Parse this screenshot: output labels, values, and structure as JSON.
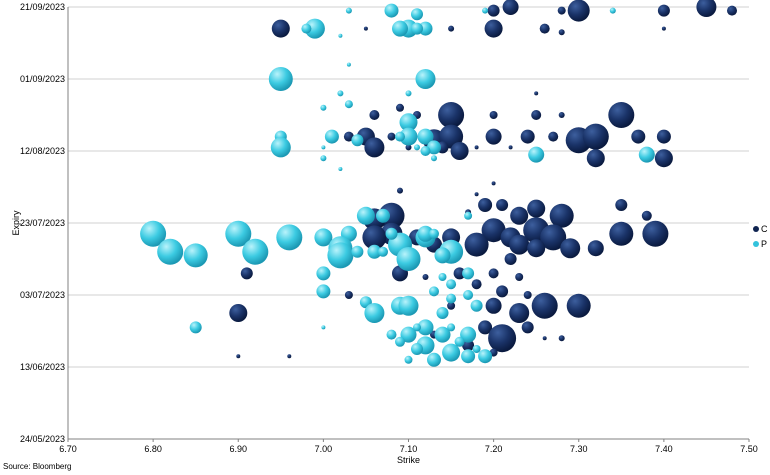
{
  "colors": {
    "C": "#0f2350",
    "P": "#33c2dc",
    "gridline": "#d0d0d0",
    "axis": "#808080"
  },
  "source": "Source: Bloomberg",
  "chart_data": {
    "type": "scatter",
    "subtype": "bubble",
    "title": "",
    "xlabel": "Strike",
    "ylabel": "Expiry",
    "xlim": [
      6.7,
      7.5
    ],
    "ylim": [
      "24/05/2023",
      "21/09/2023"
    ],
    "x_ticks": [
      "6.70",
      "6.80",
      "6.90",
      "7.00",
      "7.10",
      "7.20",
      "7.30",
      "7.40",
      "7.50"
    ],
    "y_ticks": [
      "21/09/2023",
      "01/09/2023",
      "12/08/2023",
      "23/07/2023",
      "03/07/2023",
      "13/06/2023",
      "24/05/2023"
    ],
    "grid": "horizontal",
    "legend_position": "right",
    "series": [
      {
        "name": "C",
        "points": [
          {
            "x": 7.22,
            "y": "2023-09-21",
            "r": 8
          },
          {
            "x": 7.3,
            "y": "2023-09-20",
            "r": 11
          },
          {
            "x": 7.45,
            "y": "2023-09-21",
            "r": 10
          },
          {
            "x": 7.4,
            "y": "2023-09-20",
            "r": 6
          },
          {
            "x": 7.2,
            "y": "2023-09-20",
            "r": 6
          },
          {
            "x": 7.28,
            "y": "2023-09-20",
            "r": 4
          },
          {
            "x": 7.48,
            "y": "2023-09-20",
            "r": 5
          },
          {
            "x": 6.95,
            "y": "2023-09-15",
            "r": 9
          },
          {
            "x": 7.2,
            "y": "2023-09-15",
            "r": 9
          },
          {
            "x": 7.26,
            "y": "2023-09-15",
            "r": 5
          },
          {
            "x": 7.15,
            "y": "2023-09-15",
            "r": 3
          },
          {
            "x": 7.05,
            "y": "2023-09-15",
            "r": 2
          },
          {
            "x": 7.28,
            "y": "2023-09-14",
            "r": 3
          },
          {
            "x": 7.4,
            "y": "2023-09-15",
            "r": 2
          },
          {
            "x": 7.15,
            "y": "2023-08-22",
            "r": 13
          },
          {
            "x": 7.35,
            "y": "2023-08-22",
            "r": 13
          },
          {
            "x": 7.2,
            "y": "2023-08-22",
            "r": 4
          },
          {
            "x": 7.06,
            "y": "2023-08-22",
            "r": 5
          },
          {
            "x": 7.25,
            "y": "2023-08-22",
            "r": 5
          },
          {
            "x": 7.11,
            "y": "2023-08-22",
            "r": 4
          },
          {
            "x": 7.09,
            "y": "2023-08-24",
            "r": 4
          },
          {
            "x": 7.28,
            "y": "2023-08-22",
            "r": 3
          },
          {
            "x": 7.25,
            "y": "2023-08-28",
            "r": 2
          },
          {
            "x": 7.03,
            "y": "2023-08-16",
            "r": 5
          },
          {
            "x": 7.05,
            "y": "2023-08-16",
            "r": 9
          },
          {
            "x": 7.13,
            "y": "2023-08-15",
            "r": 11
          },
          {
            "x": 7.15,
            "y": "2023-08-16",
            "r": 12
          },
          {
            "x": 7.2,
            "y": "2023-08-16",
            "r": 8
          },
          {
            "x": 7.24,
            "y": "2023-08-16",
            "r": 7
          },
          {
            "x": 7.27,
            "y": "2023-08-16",
            "r": 5
          },
          {
            "x": 7.3,
            "y": "2023-08-15",
            "r": 13
          },
          {
            "x": 7.32,
            "y": "2023-08-16",
            "r": 13
          },
          {
            "x": 7.4,
            "y": "2023-08-16",
            "r": 7
          },
          {
            "x": 7.37,
            "y": "2023-08-16",
            "r": 7
          },
          {
            "x": 7.08,
            "y": "2023-08-16",
            "r": 4
          },
          {
            "x": 7.1,
            "y": "2023-08-15",
            "r": 3
          },
          {
            "x": 7.14,
            "y": "2023-08-13",
            "r": 6
          },
          {
            "x": 7.06,
            "y": "2023-08-13",
            "r": 10
          },
          {
            "x": 7.1,
            "y": "2023-08-13",
            "r": 3
          },
          {
            "x": 7.16,
            "y": "2023-08-12",
            "r": 9
          },
          {
            "x": 7.32,
            "y": "2023-08-10",
            "r": 9
          },
          {
            "x": 7.4,
            "y": "2023-08-10",
            "r": 9
          },
          {
            "x": 7.18,
            "y": "2023-08-13",
            "r": 2
          },
          {
            "x": 7.22,
            "y": "2023-08-13",
            "r": 2
          },
          {
            "x": 7.09,
            "y": "2023-08-01",
            "r": 3
          },
          {
            "x": 7.18,
            "y": "2023-07-31",
            "r": 2
          },
          {
            "x": 7.2,
            "y": "2023-08-03",
            "r": 2
          },
          {
            "x": 7.19,
            "y": "2023-07-28",
            "r": 7
          },
          {
            "x": 7.21,
            "y": "2023-07-28",
            "r": 6
          },
          {
            "x": 7.25,
            "y": "2023-07-27",
            "r": 9
          },
          {
            "x": 7.28,
            "y": "2023-07-25",
            "r": 12
          },
          {
            "x": 7.35,
            "y": "2023-07-28",
            "r": 6
          },
          {
            "x": 7.38,
            "y": "2023-07-25",
            "r": 5
          },
          {
            "x": 7.08,
            "y": "2023-07-25",
            "r": 13
          },
          {
            "x": 7.06,
            "y": "2023-07-24",
            "r": 11
          },
          {
            "x": 7.17,
            "y": "2023-07-26",
            "r": 3
          },
          {
            "x": 7.23,
            "y": "2023-07-25",
            "r": 9
          },
          {
            "x": 7.2,
            "y": "2023-07-21",
            "r": 12
          },
          {
            "x": 7.25,
            "y": "2023-07-21",
            "r": 13
          },
          {
            "x": 7.27,
            "y": "2023-07-19",
            "r": 13
          },
          {
            "x": 7.35,
            "y": "2023-07-20",
            "r": 12
          },
          {
            "x": 7.39,
            "y": "2023-07-20",
            "r": 13
          },
          {
            "x": 7.22,
            "y": "2023-07-19",
            "r": 10
          },
          {
            "x": 7.08,
            "y": "2023-07-20",
            "r": 11
          },
          {
            "x": 7.06,
            "y": "2023-07-19",
            "r": 12
          },
          {
            "x": 7.15,
            "y": "2023-07-19",
            "r": 9
          },
          {
            "x": 7.18,
            "y": "2023-07-17",
            "r": 12
          },
          {
            "x": 7.23,
            "y": "2023-07-17",
            "r": 10
          },
          {
            "x": 7.29,
            "y": "2023-07-16",
            "r": 10
          },
          {
            "x": 7.25,
            "y": "2023-07-16",
            "r": 9
          },
          {
            "x": 7.32,
            "y": "2023-07-16",
            "r": 8
          },
          {
            "x": 7.13,
            "y": "2023-07-17",
            "r": 8
          },
          {
            "x": 7.11,
            "y": "2023-07-19",
            "r": 8
          },
          {
            "x": 7.22,
            "y": "2023-07-13",
            "r": 6
          },
          {
            "x": 7.0,
            "y": "2023-07-09",
            "r": 6
          },
          {
            "x": 7.2,
            "y": "2023-07-09",
            "r": 5
          },
          {
            "x": 7.23,
            "y": "2023-07-08",
            "r": 4
          },
          {
            "x": 6.91,
            "y": "2023-07-09",
            "r": 6
          },
          {
            "x": 7.09,
            "y": "2023-07-09",
            "r": 8
          },
          {
            "x": 7.16,
            "y": "2023-07-09",
            "r": 6
          },
          {
            "x": 7.12,
            "y": "2023-07-08",
            "r": 3
          },
          {
            "x": 7.18,
            "y": "2023-07-06",
            "r": 5
          },
          {
            "x": 7.21,
            "y": "2023-07-04",
            "r": 6
          },
          {
            "x": 7.24,
            "y": "2023-07-03",
            "r": 4
          },
          {
            "x": 7.03,
            "y": "2023-07-03",
            "r": 4
          },
          {
            "x": 7.2,
            "y": "2023-06-30",
            "r": 8
          },
          {
            "x": 7.23,
            "y": "2023-06-28",
            "r": 10
          },
          {
            "x": 7.26,
            "y": "2023-06-30",
            "r": 13
          },
          {
            "x": 7.3,
            "y": "2023-06-30",
            "r": 12
          },
          {
            "x": 7.15,
            "y": "2023-06-30",
            "r": 4
          },
          {
            "x": 6.9,
            "y": "2023-06-28",
            "r": 9
          },
          {
            "x": 7.19,
            "y": "2023-06-24",
            "r": 7
          },
          {
            "x": 7.21,
            "y": "2023-06-21",
            "r": 14
          },
          {
            "x": 7.24,
            "y": "2023-06-24",
            "r": 6
          },
          {
            "x": 7.28,
            "y": "2023-06-21",
            "r": 3
          },
          {
            "x": 7.13,
            "y": "2023-06-22",
            "r": 4
          },
          {
            "x": 7.17,
            "y": "2023-06-19",
            "r": 6
          },
          {
            "x": 7.2,
            "y": "2023-06-17",
            "r": 4
          },
          {
            "x": 6.9,
            "y": "2023-06-16",
            "r": 2
          },
          {
            "x": 6.96,
            "y": "2023-06-16",
            "r": 2
          },
          {
            "x": 7.26,
            "y": "2023-06-21",
            "r": 2
          }
        ]
      },
      {
        "name": "P",
        "points": [
          {
            "x": 7.08,
            "y": "2023-09-20",
            "r": 7
          },
          {
            "x": 7.11,
            "y": "2023-09-19",
            "r": 6
          },
          {
            "x": 7.03,
            "y": "2023-09-20",
            "r": 3
          },
          {
            "x": 7.19,
            "y": "2023-09-20",
            "r": 3
          },
          {
            "x": 7.34,
            "y": "2023-09-20",
            "r": 3
          },
          {
            "x": 6.99,
            "y": "2023-09-15",
            "r": 10
          },
          {
            "x": 6.98,
            "y": "2023-09-15",
            "r": 5
          },
          {
            "x": 7.1,
            "y": "2023-09-15",
            "r": 9
          },
          {
            "x": 7.12,
            "y": "2023-09-15",
            "r": 7
          },
          {
            "x": 7.09,
            "y": "2023-09-15",
            "r": 8
          },
          {
            "x": 7.11,
            "y": "2023-09-15",
            "r": 6
          },
          {
            "x": 7.02,
            "y": "2023-09-13",
            "r": 2
          },
          {
            "x": 6.95,
            "y": "2023-09-01",
            "r": 12
          },
          {
            "x": 7.12,
            "y": "2023-09-01",
            "r": 10
          },
          {
            "x": 7.03,
            "y": "2023-09-05",
            "r": 2
          },
          {
            "x": 7.02,
            "y": "2023-08-28",
            "r": 3
          },
          {
            "x": 7.1,
            "y": "2023-08-28",
            "r": 3
          },
          {
            "x": 7.1,
            "y": "2023-08-20",
            "r": 9
          },
          {
            "x": 7.03,
            "y": "2023-08-25",
            "r": 4
          },
          {
            "x": 7.0,
            "y": "2023-08-24",
            "r": 3
          },
          {
            "x": 7.1,
            "y": "2023-08-16",
            "r": 9
          },
          {
            "x": 7.12,
            "y": "2023-08-16",
            "r": 8
          },
          {
            "x": 7.09,
            "y": "2023-08-16",
            "r": 5
          },
          {
            "x": 7.01,
            "y": "2023-08-16",
            "r": 7
          },
          {
            "x": 7.04,
            "y": "2023-08-15",
            "r": 6
          },
          {
            "x": 6.95,
            "y": "2023-08-16",
            "r": 6
          },
          {
            "x": 6.95,
            "y": "2023-08-13",
            "r": 10
          },
          {
            "x": 7.13,
            "y": "2023-08-13",
            "r": 7
          },
          {
            "x": 7.12,
            "y": "2023-08-12",
            "r": 5
          },
          {
            "x": 7.11,
            "y": "2023-08-13",
            "r": 3
          },
          {
            "x": 7.38,
            "y": "2023-08-11",
            "r": 8
          },
          {
            "x": 7.25,
            "y": "2023-08-11",
            "r": 8
          },
          {
            "x": 7.0,
            "y": "2023-08-13",
            "r": 2
          },
          {
            "x": 7.13,
            "y": "2023-08-10",
            "r": 3
          },
          {
            "x": 7.0,
            "y": "2023-08-10",
            "r": 3
          },
          {
            "x": 7.02,
            "y": "2023-08-07",
            "r": 2
          },
          {
            "x": 6.8,
            "y": "2023-07-20",
            "r": 13
          },
          {
            "x": 6.9,
            "y": "2023-07-20",
            "r": 13
          },
          {
            "x": 6.96,
            "y": "2023-07-19",
            "r": 13
          },
          {
            "x": 6.82,
            "y": "2023-07-15",
            "r": 13
          },
          {
            "x": 6.85,
            "y": "2023-07-14",
            "r": 12
          },
          {
            "x": 6.92,
            "y": "2023-07-15",
            "r": 13
          },
          {
            "x": 7.0,
            "y": "2023-07-19",
            "r": 9
          },
          {
            "x": 7.03,
            "y": "2023-07-20",
            "r": 8
          },
          {
            "x": 7.05,
            "y": "2023-07-25",
            "r": 9
          },
          {
            "x": 7.07,
            "y": "2023-07-25",
            "r": 7
          },
          {
            "x": 7.17,
            "y": "2023-07-25",
            "r": 4
          },
          {
            "x": 7.02,
            "y": "2023-07-16",
            "r": 12
          },
          {
            "x": 7.02,
            "y": "2023-07-14",
            "r": 13
          },
          {
            "x": 7.06,
            "y": "2023-07-15",
            "r": 7
          },
          {
            "x": 7.09,
            "y": "2023-07-17",
            "r": 12
          },
          {
            "x": 7.1,
            "y": "2023-07-13",
            "r": 12
          },
          {
            "x": 7.12,
            "y": "2023-07-19",
            "r": 10
          },
          {
            "x": 7.15,
            "y": "2023-07-15",
            "r": 12
          },
          {
            "x": 7.14,
            "y": "2023-07-14",
            "r": 8
          },
          {
            "x": 7.12,
            "y": "2023-07-20",
            "r": 8
          },
          {
            "x": 7.08,
            "y": "2023-07-20",
            "r": 6
          },
          {
            "x": 7.13,
            "y": "2023-07-20",
            "r": 5
          },
          {
            "x": 7.04,
            "y": "2023-07-15",
            "r": 6
          },
          {
            "x": 7.07,
            "y": "2023-07-15",
            "r": 5
          },
          {
            "x": 7.0,
            "y": "2023-07-09",
            "r": 7
          },
          {
            "x": 7.0,
            "y": "2023-07-04",
            "r": 7
          },
          {
            "x": 7.05,
            "y": "2023-07-01",
            "r": 6
          },
          {
            "x": 7.09,
            "y": "2023-06-30",
            "r": 9
          },
          {
            "x": 7.1,
            "y": "2023-06-30",
            "r": 10
          },
          {
            "x": 7.06,
            "y": "2023-06-28",
            "r": 10
          },
          {
            "x": 7.13,
            "y": "2023-07-04",
            "r": 5
          },
          {
            "x": 7.15,
            "y": "2023-07-02",
            "r": 5
          },
          {
            "x": 7.14,
            "y": "2023-06-28",
            "r": 6
          },
          {
            "x": 7.18,
            "y": "2023-06-30",
            "r": 6
          },
          {
            "x": 7.14,
            "y": "2023-07-08",
            "r": 4
          },
          {
            "x": 7.17,
            "y": "2023-07-09",
            "r": 6
          },
          {
            "x": 7.15,
            "y": "2023-07-06",
            "r": 5
          },
          {
            "x": 7.17,
            "y": "2023-07-03",
            "r": 5
          },
          {
            "x": 7.12,
            "y": "2023-06-24",
            "r": 8
          },
          {
            "x": 7.1,
            "y": "2023-06-22",
            "r": 8
          },
          {
            "x": 7.14,
            "y": "2023-06-22",
            "r": 8
          },
          {
            "x": 7.17,
            "y": "2023-06-22",
            "r": 8
          },
          {
            "x": 7.12,
            "y": "2023-06-19",
            "r": 9
          },
          {
            "x": 7.15,
            "y": "2023-06-17",
            "r": 9
          },
          {
            "x": 7.13,
            "y": "2023-06-15",
            "r": 7
          },
          {
            "x": 7.17,
            "y": "2023-06-16",
            "r": 7
          },
          {
            "x": 7.19,
            "y": "2023-06-16",
            "r": 7
          },
          {
            "x": 7.11,
            "y": "2023-06-18",
            "r": 6
          },
          {
            "x": 7.09,
            "y": "2023-06-20",
            "r": 5
          },
          {
            "x": 7.08,
            "y": "2023-06-22",
            "r": 5
          },
          {
            "x": 7.16,
            "y": "2023-06-20",
            "r": 5
          },
          {
            "x": 7.15,
            "y": "2023-06-24",
            "r": 4
          },
          {
            "x": 7.11,
            "y": "2023-06-24",
            "r": 4
          },
          {
            "x": 6.85,
            "y": "2023-06-24",
            "r": 6
          },
          {
            "x": 7.0,
            "y": "2023-06-24",
            "r": 2
          },
          {
            "x": 7.1,
            "y": "2023-06-15",
            "r": 4
          },
          {
            "x": 7.18,
            "y": "2023-06-18",
            "r": 4
          }
        ]
      }
    ]
  }
}
